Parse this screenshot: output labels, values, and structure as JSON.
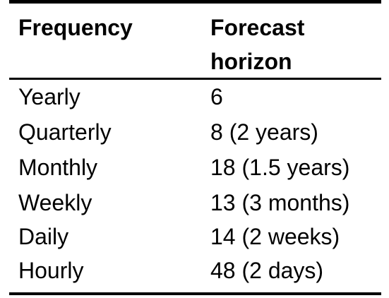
{
  "table": {
    "headers": {
      "frequency": "Frequency",
      "horizon_line1": "Forecast",
      "horizon_line2": "horizon"
    },
    "rows": [
      {
        "frequency": "Yearly",
        "horizon": "6"
      },
      {
        "frequency": "Quarterly",
        "horizon": "8 (2 years)"
      },
      {
        "frequency": "Monthly",
        "horizon": "18 (1.5 years)"
      },
      {
        "frequency": "Weekly",
        "horizon": "13 (3 months)"
      },
      {
        "frequency": "Daily",
        "horizon": "14 (2 weeks)"
      },
      {
        "frequency": "Hourly",
        "horizon": "48 (2 days)"
      }
    ]
  }
}
